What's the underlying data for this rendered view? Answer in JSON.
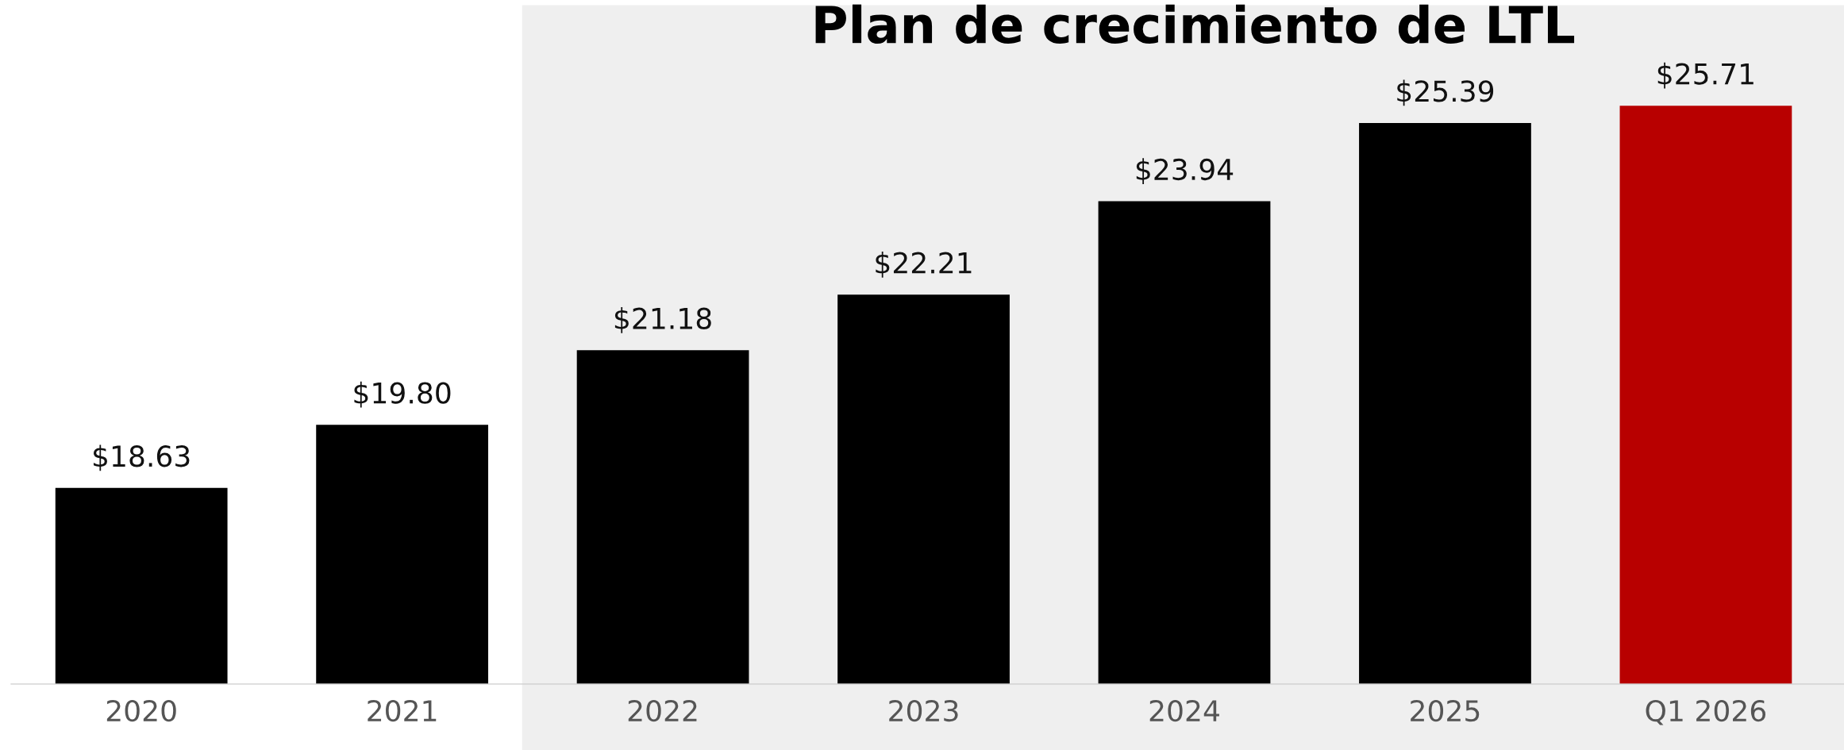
{
  "chart_data": {
    "type": "bar",
    "title": "Plan de crecimiento de LTL",
    "categories": [
      "2020",
      "2021",
      "2022",
      "2023",
      "2024",
      "2025",
      "Q1 2026"
    ],
    "values": [
      18.63,
      19.8,
      21.18,
      22.21,
      23.94,
      25.39,
      25.71
    ],
    "colors": [
      "#000000",
      "#000000",
      "#000000",
      "#000000",
      "#000000",
      "#000000",
      "#b80000"
    ],
    "value_labels": [
      "$18.63",
      "$19.80",
      "$21.18",
      "$22.21",
      "$23.94",
      "$25.39",
      "$25.71"
    ],
    "ylim": [
      15,
      27.57
    ],
    "bands": [
      {
        "axis": "x",
        "from": "2022",
        "to": "Q1 2026",
        "color": "#efefef"
      }
    ],
    "tick_labels": "x",
    "grid": false,
    "legend": false
  }
}
